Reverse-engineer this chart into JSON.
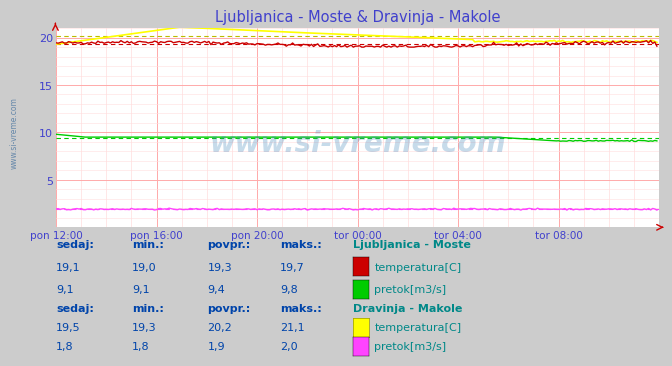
{
  "title": "Ljubljanica - Moste & Dravinja - Makole",
  "title_color": "#4040cc",
  "bg_color": "#cccccc",
  "plot_bg_color": "#ffffff",
  "grid_color_v": "#ffaaaa",
  "grid_color_h": "#ffcccc",
  "tick_color": "#4040cc",
  "watermark": "www.si-vreme.com",
  "watermark_color": "#4488bb",
  "xlabels": [
    "pon 12:00",
    "pon 16:00",
    "pon 20:00",
    "tor 00:00",
    "tor 04:00",
    "tor 08:00"
  ],
  "n_points": 288,
  "lj_temp_color": "#cc0000",
  "lj_temp_avg": 19.3,
  "lj_temp_min": 19.0,
  "lj_temp_max": 19.7,
  "lj_temp_sedaj": 19.1,
  "lj_pretok_color": "#00cc00",
  "lj_pretok_avg": 9.4,
  "lj_pretok_min": 9.1,
  "lj_pretok_max": 9.8,
  "lj_pretok_sedaj": 9.1,
  "dr_temp_color": "#ffff00",
  "dr_temp_avg": 20.2,
  "dr_temp_min": 19.3,
  "dr_temp_max": 21.1,
  "dr_temp_sedaj": 19.5,
  "dr_pretok_color": "#ff44ff",
  "dr_pretok_avg": 1.9,
  "dr_pretok_min": 1.8,
  "dr_pretok_max": 2.0,
  "dr_pretok_sedaj": 1.8,
  "legend_color": "#008888",
  "header_color": "#0044aa",
  "value_color": "#0044aa",
  "side_text_color": "#6688aa",
  "arrow_color": "#cc0000",
  "ylim_max": 21.0,
  "ytick_labels": [
    "",
    "5",
    "10",
    "15",
    "20"
  ]
}
